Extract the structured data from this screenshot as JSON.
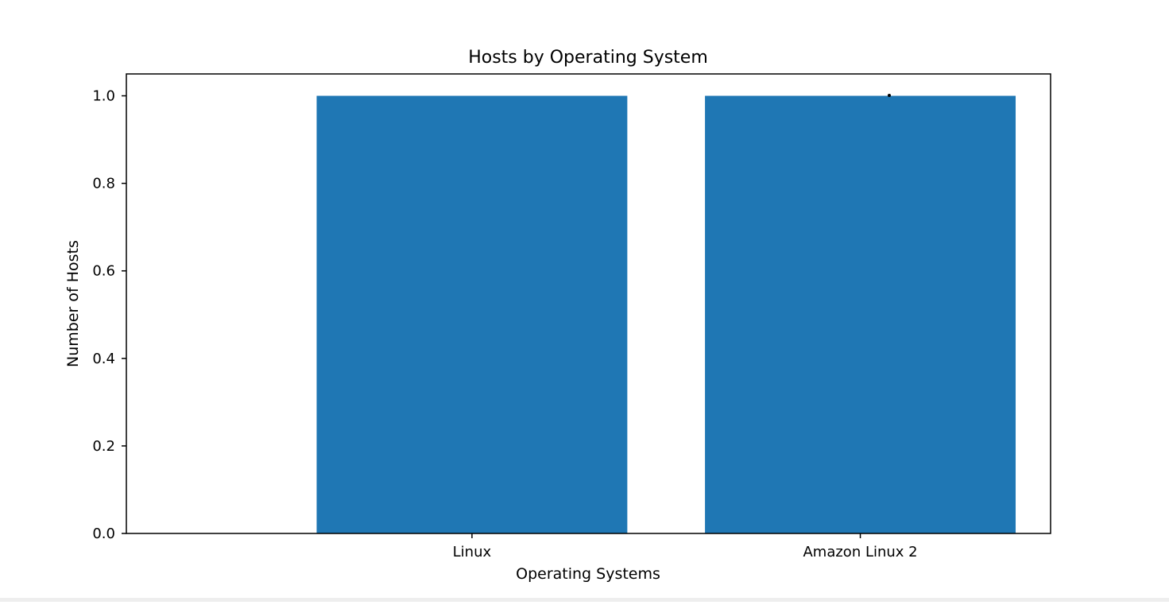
{
  "chart_data": {
    "type": "bar",
    "title": "Hosts by Operating System",
    "xlabel": "Operating Systems",
    "ylabel": "Number of Hosts",
    "categories": [
      "Linux",
      "Amazon Linux 2"
    ],
    "values": [
      1,
      1
    ],
    "ylim": [
      0,
      1.05
    ],
    "yticks": [
      "0.0",
      "0.2",
      "0.4",
      "0.6",
      "0.8",
      "1.0"
    ],
    "grid": false,
    "colors": {
      "bar": "#1f77b4",
      "axes": "#000000",
      "background": "#ffffff"
    }
  }
}
